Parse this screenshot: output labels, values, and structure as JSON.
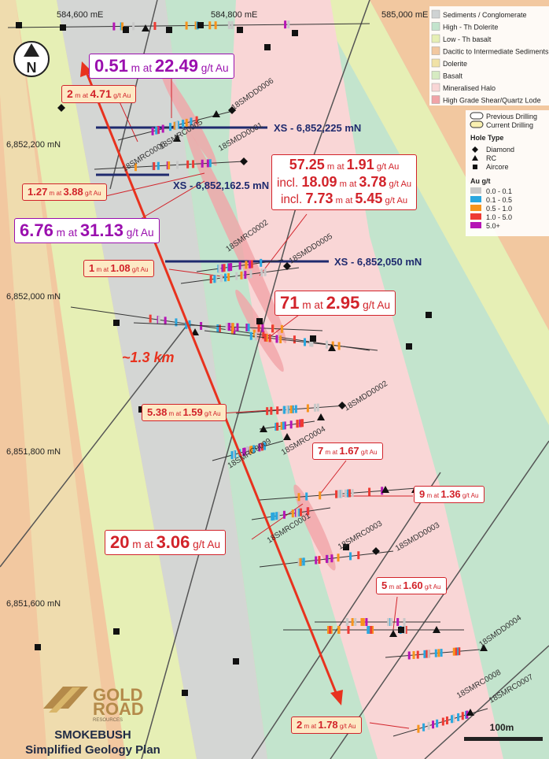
{
  "map": {
    "grid_labels": [
      "584,600 mE",
      "584,800 mE",
      "585,000 mE",
      "6,852,200 mN",
      "6,852,000 mN",
      "6,851,800 mN",
      "6,851,600 mN"
    ],
    "north": "N",
    "sections": [
      "XS - 6,852,225 mN",
      "XS - 6,852,162.5 mN",
      "XS - 6,852,050 mN"
    ],
    "holes": [
      "18SMDD0006",
      "18SMRC0006",
      "18SMRC0005",
      "18SMDD0001",
      "18SMRC0002",
      "18SMDD0005",
      "18SMDD0002",
      "18SMRC0004",
      "18SMRC0009",
      "18SMRC0001",
      "18SMRC0003",
      "18SMDD0003",
      "18SMDD0004",
      "18SMRC0008",
      "18SMRC0007"
    ],
    "callouts": [
      {
        "lines": [
          [
            "0.51",
            " m at ",
            "22.49",
            " g/t Au"
          ]
        ]
      },
      {
        "lines": [
          [
            "2",
            " m at ",
            "4.71",
            " g/t Au"
          ]
        ]
      },
      {
        "lines": [
          [
            "1.27",
            " m at ",
            "3.88",
            " g/t Au"
          ]
        ]
      },
      {
        "lines": [
          [
            "57.25",
            " m at ",
            "1.91",
            " g/t Au"
          ],
          [
            "incl. ",
            "18.09",
            " m at ",
            "3.78",
            " g/t Au"
          ],
          [
            "incl. ",
            "7.73",
            " m at ",
            "5.45",
            " g/t Au"
          ]
        ]
      },
      {
        "lines": [
          [
            "6.76",
            " m at ",
            "31.13",
            " g/t Au"
          ]
        ]
      },
      {
        "lines": [
          [
            "1",
            " m at ",
            "1.08",
            " g/t Au"
          ]
        ]
      },
      {
        "lines": [
          [
            "71",
            " m at ",
            "2.95",
            " g/t Au"
          ]
        ]
      },
      {
        "lines": [
          [
            "5.38",
            " m at ",
            "1.59",
            " g/t Au"
          ]
        ]
      },
      {
        "lines": [
          [
            "7",
            " m at ",
            "1.67",
            " g/t Au"
          ]
        ]
      },
      {
        "lines": [
          [
            "9",
            " m at ",
            "1.36",
            " g/t Au"
          ]
        ]
      },
      {
        "lines": [
          [
            "20",
            " m at ",
            "3.06",
            " g/t Au"
          ]
        ]
      },
      {
        "lines": [
          [
            "5",
            " m at ",
            "1.60",
            " g/t Au"
          ]
        ]
      },
      {
        "lines": [
          [
            "2",
            " m at ",
            "1.78",
            " g/t Au"
          ]
        ]
      }
    ],
    "distance": "~1.3 km",
    "scale": "100m"
  },
  "legend": {
    "geology": [
      {
        "name": "Sediments / Conglomerate",
        "color": "#cfd3d3"
      },
      {
        "name": "High - Th Dolerite",
        "color": "#c3e4cd"
      },
      {
        "name": "Low - Th basalt",
        "color": "#e6efb5"
      },
      {
        "name": "Dacitic to Intermediate Sediments",
        "color": "#f2c8a0"
      },
      {
        "name": "Dolerite",
        "color": "#f1e2a6"
      },
      {
        "name": "Basalt",
        "color": "#d6ebc2"
      },
      {
        "name": "Mineralised Halo",
        "color": "#f9d6d6"
      },
      {
        "name": "High Grade Shear/Quartz Lode",
        "color": "#f1a4a8"
      }
    ],
    "drilling": [
      "Previous Drilling",
      "Current Drilling"
    ],
    "hole_type_title": "Hole Type",
    "hole_types": [
      "Diamond",
      "RC",
      "Aircore"
    ],
    "au_title": "Au g/t",
    "au_classes": [
      {
        "name": "0.0 - 0.1",
        "color": "#c8c8c8"
      },
      {
        "name": "0.1 - 0.5",
        "color": "#2aa7df"
      },
      {
        "name": "0.5 - 1.0",
        "color": "#f7941d"
      },
      {
        "name": "1.0 - 5.0",
        "color": "#ee3b34"
      },
      {
        "name": "5.0+",
        "color": "#b515b5"
      }
    ]
  },
  "logo": {
    "line1": "GOLD",
    "line2": "ROAD",
    "line3": "RESOURCES"
  },
  "title": {
    "line1": "SMOKEBUSH",
    "line2": "Simplified Geology Plan"
  }
}
